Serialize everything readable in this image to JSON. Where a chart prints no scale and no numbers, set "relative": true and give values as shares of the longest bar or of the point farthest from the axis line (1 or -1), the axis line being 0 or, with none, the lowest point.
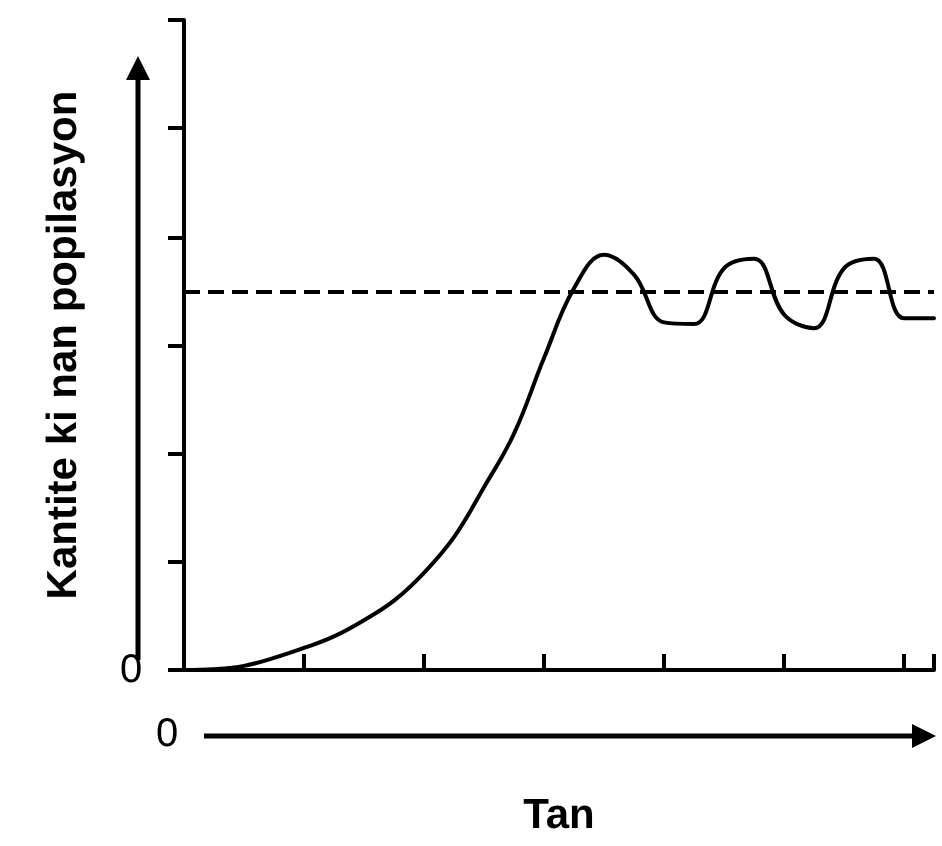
{
  "chart_data": {
    "type": "line",
    "relative": true,
    "xlabel": "Tan",
    "ylabel": "Kantite ki nan popilasyon",
    "categories": [
      null,
      null,
      null,
      null,
      null,
      null,
      null,
      null,
      null,
      null,
      null,
      null,
      null,
      null,
      null,
      null,
      null,
      null,
      null,
      null,
      null,
      null,
      null,
      null,
      null,
      null
    ],
    "series": [
      {
        "color": "#000000",
        "values": [
          0,
          0.002,
          0.01,
          0.029,
          0.053,
          0.081,
          0.12,
          0.167,
          0.234,
          0.32,
          0.44,
          0.569,
          0.751,
          0.919,
          1,
          0.952,
          0.837,
          0.833,
          0.967,
          0.99,
          0.856,
          0.823,
          0.967,
          0.99,
          0.847,
          0.847
        ]
      }
    ],
    "ref_lines": [
      {
        "axis": "y",
        "value": 0.914,
        "color": "#000000",
        "line_style": "dashed"
      }
    ],
    "annotations": [
      "0",
      "0"
    ],
    "marker": "none",
    "line_style": "solid"
  }
}
